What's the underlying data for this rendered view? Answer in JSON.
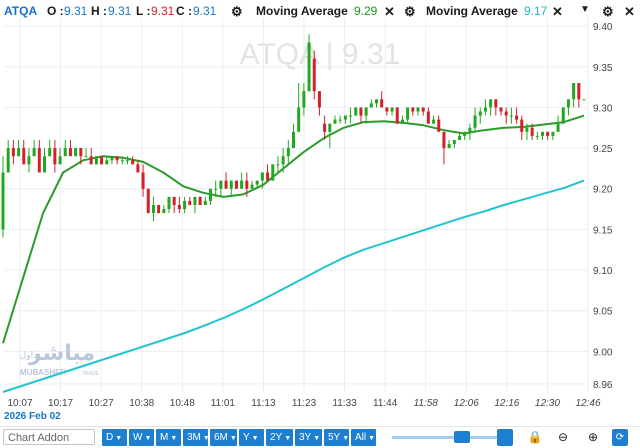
{
  "legend": {
    "symbol": "ATQA",
    "o_label": "O :",
    "o_value": "9.31",
    "h_label": "H :",
    "h_value": "9.31",
    "l_label": "L :",
    "l_value": "9.31",
    "c_label": "C :",
    "c_value": "9.31",
    "ma1_label": "Moving Average",
    "ma1_value": "9.29",
    "ma2_label": "Moving Average",
    "ma2_value": "9.17"
  },
  "watermark": {
    "brand_ar": "مباشر",
    "brand_sub_ar": "تداول",
    "brand_en": "MUBASHER",
    "brand_en_sub": "TRADE"
  },
  "date_label": "2026 Feb 02",
  "toolbar": {
    "addon_placeholder": "Chart Addon",
    "periods": [
      "D",
      "W",
      "M",
      "3M",
      "6M",
      "Y",
      "2Y",
      "3Y",
      "5Y",
      "All"
    ]
  },
  "colors": {
    "up": "#21a821",
    "down": "#d3202a",
    "ma_short": "#2d9a2d",
    "ma_long": "#22c4cf",
    "accent": "#1e7fd0"
  },
  "chart_data": {
    "type": "candlestick",
    "title": "ATQA | 9.31",
    "x_ticks": [
      "10:07",
      "10:17",
      "10:27",
      "10:38",
      "10:48",
      "11:01",
      "11:13",
      "11:23",
      "11:33",
      "11:44",
      "11:58",
      "12:06",
      "12:16",
      "12:30",
      "12:46"
    ],
    "y_ticks": [
      9.4,
      9.35,
      9.3,
      9.25,
      9.2,
      9.15,
      9.1,
      9.05,
      9.0,
      8.96
    ],
    "ylim": [
      8.95,
      9.41
    ],
    "grid": true,
    "series": [
      {
        "name": "Moving Average",
        "value": 9.29,
        "values": [
          9.01,
          9.09,
          9.17,
          9.22,
          9.235,
          9.24,
          9.238,
          9.233,
          9.22,
          9.203,
          9.195,
          9.19,
          9.193,
          9.205,
          9.225,
          9.245,
          9.262,
          9.275,
          9.282,
          9.283,
          9.281,
          9.278,
          9.272,
          9.268,
          9.272,
          9.275,
          9.276,
          9.279,
          9.282,
          9.29
        ]
      },
      {
        "name": "Moving Average",
        "value": 9.17,
        "values": [
          8.95,
          8.958,
          8.966,
          8.974,
          8.982,
          8.99,
          8.998,
          9.006,
          9.014,
          9.022,
          9.031,
          9.041,
          9.052,
          9.064,
          9.077,
          9.09,
          9.103,
          9.115,
          9.125,
          9.133,
          9.141,
          9.149,
          9.157,
          9.165,
          9.172,
          9.18,
          9.187,
          9.194,
          9.201,
          9.21
        ]
      }
    ],
    "candles": [
      [
        9.15,
        9.24,
        9.14,
        9.22
      ],
      [
        9.22,
        9.26,
        9.22,
        9.25
      ],
      [
        9.25,
        9.26,
        9.23,
        9.24
      ],
      [
        9.24,
        9.26,
        9.24,
        9.25
      ],
      [
        9.25,
        9.26,
        9.23,
        9.23
      ],
      [
        9.23,
        9.25,
        9.22,
        9.24
      ],
      [
        9.24,
        9.26,
        9.24,
        9.25
      ],
      [
        9.25,
        9.26,
        9.22,
        9.22
      ],
      [
        9.22,
        9.25,
        9.22,
        9.24
      ],
      [
        9.24,
        9.26,
        9.24,
        9.25
      ],
      [
        9.25,
        9.26,
        9.22,
        9.23
      ],
      [
        9.23,
        9.25,
        9.23,
        9.24
      ],
      [
        9.24,
        9.26,
        9.24,
        9.25
      ],
      [
        9.25,
        9.26,
        9.24,
        9.24
      ],
      [
        9.24,
        9.25,
        9.24,
        9.25
      ],
      [
        9.25,
        9.25,
        9.23,
        9.24
      ],
      [
        9.24,
        9.25,
        9.24,
        9.24
      ],
      [
        9.24,
        9.25,
        9.23,
        9.23
      ],
      [
        9.23,
        9.24,
        9.23,
        9.24
      ],
      [
        9.24,
        9.24,
        9.23,
        9.23
      ],
      [
        9.23,
        9.24,
        9.23,
        9.235
      ],
      [
        9.235,
        9.24,
        9.23,
        9.24
      ],
      [
        9.24,
        9.24,
        9.23,
        9.235
      ],
      [
        9.235,
        9.24,
        9.23,
        9.235
      ],
      [
        9.235,
        9.24,
        9.23,
        9.235
      ],
      [
        9.235,
        9.24,
        9.23,
        9.23
      ],
      [
        9.23,
        9.235,
        9.22,
        9.22
      ],
      [
        9.22,
        9.23,
        9.19,
        9.2
      ],
      [
        9.2,
        9.2,
        9.17,
        9.17
      ],
      [
        9.17,
        9.19,
        9.16,
        9.18
      ],
      [
        9.18,
        9.18,
        9.17,
        9.17
      ],
      [
        9.17,
        9.18,
        9.17,
        9.175
      ],
      [
        9.175,
        9.19,
        9.17,
        9.19
      ],
      [
        9.19,
        9.19,
        9.17,
        9.18
      ],
      [
        9.18,
        9.19,
        9.17,
        9.175
      ],
      [
        9.175,
        9.19,
        9.17,
        9.185
      ],
      [
        9.185,
        9.19,
        9.18,
        9.18
      ],
      [
        9.18,
        9.19,
        9.17,
        9.19
      ],
      [
        9.19,
        9.19,
        9.18,
        9.18
      ],
      [
        9.18,
        9.19,
        9.18,
        9.185
      ],
      [
        9.185,
        9.2,
        9.18,
        9.2
      ],
      [
        9.2,
        9.21,
        9.19,
        9.2
      ],
      [
        9.2,
        9.21,
        9.19,
        9.21
      ],
      [
        9.21,
        9.22,
        9.2,
        9.2
      ],
      [
        9.2,
        9.21,
        9.19,
        9.21
      ],
      [
        9.21,
        9.21,
        9.2,
        9.2
      ],
      [
        9.2,
        9.22,
        9.2,
        9.21
      ],
      [
        9.21,
        9.22,
        9.19,
        9.2
      ],
      [
        9.2,
        9.21,
        9.2,
        9.205
      ],
      [
        9.205,
        9.21,
        9.2,
        9.21
      ],
      [
        9.21,
        9.22,
        9.2,
        9.22
      ],
      [
        9.22,
        9.23,
        9.21,
        9.21
      ],
      [
        9.21,
        9.23,
        9.21,
        9.23
      ],
      [
        9.23,
        9.24,
        9.22,
        9.23
      ],
      [
        9.23,
        9.25,
        9.22,
        9.24
      ],
      [
        9.24,
        9.26,
        9.23,
        9.25
      ],
      [
        9.25,
        9.28,
        9.25,
        9.27
      ],
      [
        9.27,
        9.33,
        9.27,
        9.3
      ],
      [
        9.3,
        9.33,
        9.29,
        9.32
      ],
      [
        9.32,
        9.39,
        9.32,
        9.38
      ],
      [
        9.36,
        9.37,
        9.31,
        9.32
      ],
      [
        9.32,
        9.32,
        9.29,
        9.3
      ],
      [
        9.28,
        9.29,
        9.26,
        9.27
      ],
      [
        9.27,
        9.28,
        9.25,
        9.28
      ],
      [
        9.28,
        9.29,
        9.28,
        9.285
      ],
      [
        9.285,
        9.29,
        9.28,
        9.285
      ],
      [
        9.285,
        9.29,
        9.28,
        9.29
      ],
      [
        9.29,
        9.3,
        9.28,
        9.29
      ],
      [
        9.29,
        9.3,
        9.29,
        9.3
      ],
      [
        9.3,
        9.3,
        9.28,
        9.29
      ],
      [
        9.29,
        9.3,
        9.28,
        9.3
      ],
      [
        9.3,
        9.31,
        9.3,
        9.305
      ],
      [
        9.305,
        9.31,
        9.3,
        9.31
      ],
      [
        9.31,
        9.32,
        9.3,
        9.3
      ],
      [
        9.3,
        9.3,
        9.29,
        9.295
      ],
      [
        9.295,
        9.3,
        9.29,
        9.3
      ],
      [
        9.3,
        9.3,
        9.28,
        9.28
      ],
      [
        9.28,
        9.29,
        9.28,
        9.285
      ],
      [
        9.285,
        9.3,
        9.28,
        9.3
      ],
      [
        9.3,
        9.3,
        9.29,
        9.295
      ],
      [
        9.295,
        9.3,
        9.29,
        9.3
      ],
      [
        9.3,
        9.3,
        9.29,
        9.295
      ],
      [
        9.295,
        9.3,
        9.28,
        9.28
      ],
      [
        9.28,
        9.29,
        9.28,
        9.285
      ],
      [
        9.285,
        9.29,
        9.27,
        9.27
      ],
      [
        9.27,
        9.27,
        9.23,
        9.25
      ],
      [
        9.25,
        9.26,
        9.25,
        9.255
      ],
      [
        9.255,
        9.26,
        9.25,
        9.26
      ],
      [
        9.26,
        9.27,
        9.26,
        9.265
      ],
      [
        9.265,
        9.27,
        9.26,
        9.27
      ],
      [
        9.27,
        9.28,
        9.26,
        9.275
      ],
      [
        9.275,
        9.3,
        9.27,
        9.29
      ],
      [
        9.29,
        9.3,
        9.28,
        9.295
      ],
      [
        9.295,
        9.31,
        9.29,
        9.3
      ],
      [
        9.3,
        9.31,
        9.29,
        9.31
      ],
      [
        9.31,
        9.31,
        9.29,
        9.3
      ],
      [
        9.3,
        9.3,
        9.29,
        9.295
      ],
      [
        9.295,
        9.3,
        9.28,
        9.29
      ],
      [
        9.29,
        9.3,
        9.28,
        9.29
      ],
      [
        9.29,
        9.3,
        9.28,
        9.285
      ],
      [
        9.285,
        9.29,
        9.26,
        9.27
      ],
      [
        9.27,
        9.28,
        9.26,
        9.275
      ],
      [
        9.275,
        9.28,
        9.26,
        9.265
      ],
      [
        9.265,
        9.27,
        9.26,
        9.265
      ],
      [
        9.265,
        9.27,
        9.26,
        9.27
      ],
      [
        9.27,
        9.27,
        9.26,
        9.265
      ],
      [
        9.265,
        9.27,
        9.26,
        9.27
      ],
      [
        9.27,
        9.29,
        9.27,
        9.28
      ],
      [
        9.28,
        9.3,
        9.28,
        9.3
      ],
      [
        9.3,
        9.31,
        9.29,
        9.31
      ],
      [
        9.31,
        9.33,
        9.3,
        9.33
      ],
      [
        9.33,
        9.33,
        9.3,
        9.31
      ],
      [
        9.31,
        9.31,
        9.31,
        9.31
      ]
    ]
  }
}
